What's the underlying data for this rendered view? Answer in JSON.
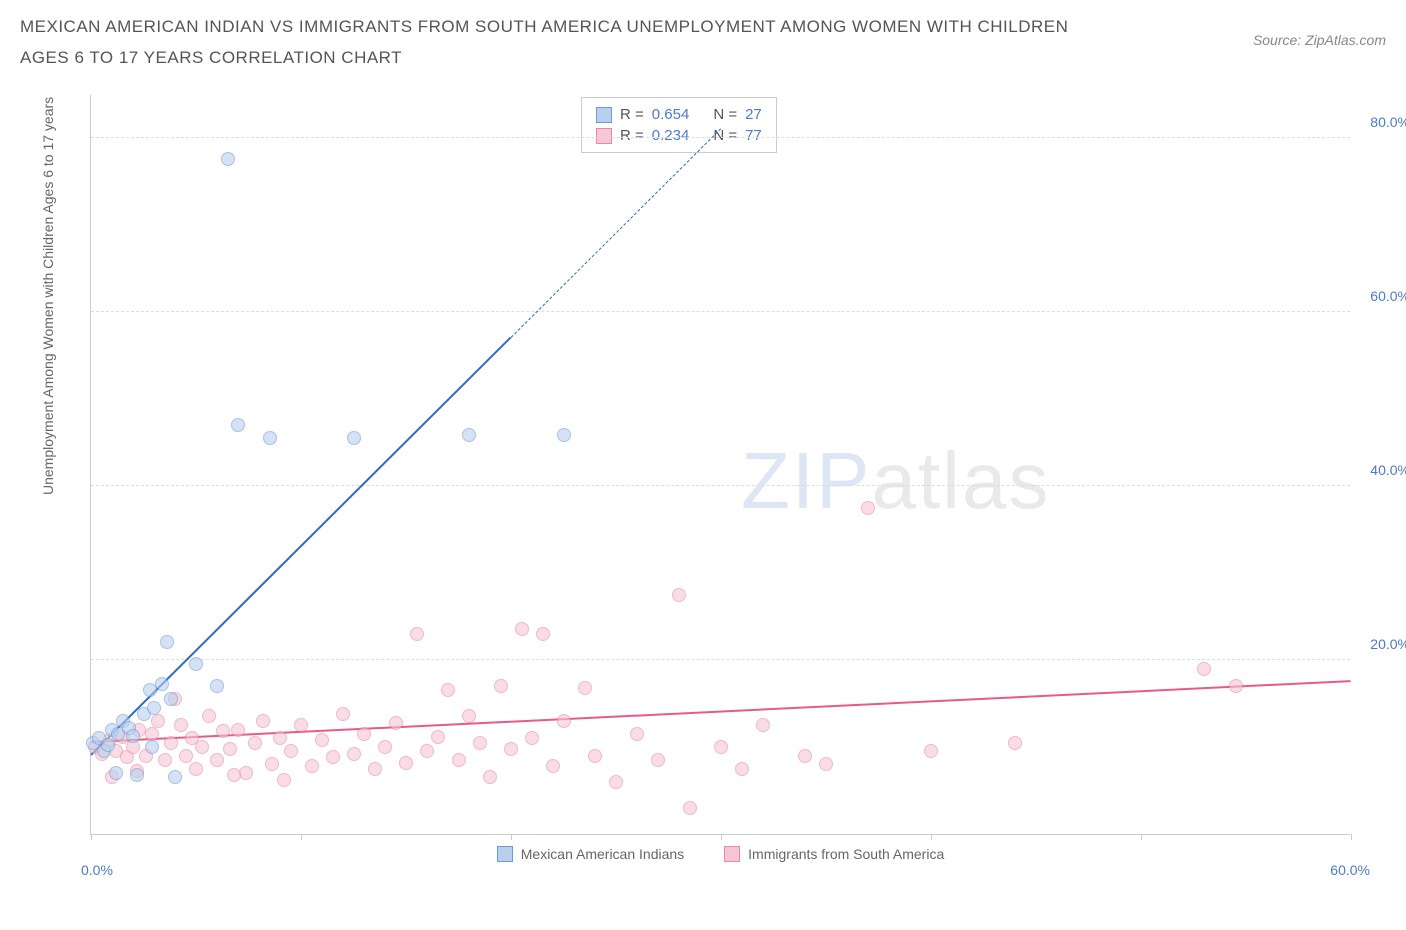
{
  "title": "MEXICAN AMERICAN INDIAN VS IMMIGRANTS FROM SOUTH AMERICA UNEMPLOYMENT AMONG WOMEN WITH CHILDREN AGES 6 TO 17 YEARS CORRELATION CHART",
  "source": "Source: ZipAtlas.com",
  "y_axis_label": "Unemployment Among Women with Children Ages 6 to 17 years",
  "watermark": {
    "bold": "ZIP",
    "light": "atlas"
  },
  "chart": {
    "type": "scatter",
    "xlim": [
      0,
      60
    ],
    "ylim": [
      0,
      85
    ],
    "x_tick_positions": [
      0,
      10,
      20,
      30,
      40,
      50,
      60
    ],
    "x_tick_labels_shown": {
      "left": "0.0%",
      "right": "60.0%"
    },
    "y_ticks": [
      {
        "value": 20,
        "label": "20.0%"
      },
      {
        "value": 40,
        "label": "40.0%"
      },
      {
        "value": 60,
        "label": "60.0%"
      },
      {
        "value": 80,
        "label": "80.0%"
      }
    ],
    "grid_color": "#dddddd",
    "background_color": "#ffffff",
    "series": [
      {
        "name": "Mexican American Indians",
        "color_fill": "#b8d0ee",
        "color_stroke": "#6a9bd8",
        "marker_size": 14,
        "fill_opacity": 0.6,
        "trend": {
          "color": "#2e6bc7",
          "x1": 0,
          "y1": 9,
          "x2_solid": 20,
          "y2_solid": 57,
          "x2_dash": 30,
          "y2_dash": 81
        },
        "R": "0.654",
        "N": "27",
        "points": [
          [
            0.1,
            10.5
          ],
          [
            0.4,
            11
          ],
          [
            0.6,
            9.5
          ],
          [
            0.8,
            10.2
          ],
          [
            1.0,
            12
          ],
          [
            1.3,
            11.5
          ],
          [
            1.5,
            13
          ],
          [
            1.8,
            12.2
          ],
          [
            2.0,
            11.3
          ],
          [
            2.2,
            6.8
          ],
          [
            2.5,
            13.8
          ],
          [
            2.8,
            16.5
          ],
          [
            3.0,
            14.5
          ],
          [
            3.4,
            17.2
          ],
          [
            3.8,
            15.5
          ],
          [
            3.6,
            22.0
          ],
          [
            5.0,
            19.5
          ],
          [
            6.0,
            17.0
          ],
          [
            6.5,
            77.5
          ],
          [
            7.0,
            47.0
          ],
          [
            8.5,
            45.5
          ],
          [
            12.5,
            45.5
          ],
          [
            18.0,
            45.8
          ],
          [
            22.5,
            45.8
          ],
          [
            1.2,
            7.0
          ],
          [
            4.0,
            6.5
          ],
          [
            2.9,
            10.0
          ]
        ]
      },
      {
        "name": "Immigrants from South America",
        "color_fill": "#f7c6d4",
        "color_stroke": "#e88aa6",
        "marker_size": 14,
        "fill_opacity": 0.6,
        "trend": {
          "color": "#e75a8a",
          "x1": 0,
          "y1": 10.5,
          "x2_solid": 60,
          "y2_solid": 17.5
        },
        "R": "0.234",
        "N": "77",
        "points": [
          [
            0.2,
            10
          ],
          [
            0.5,
            9.2
          ],
          [
            0.9,
            10.8
          ],
          [
            1.2,
            9.5
          ],
          [
            1.5,
            11.2
          ],
          [
            1.7,
            8.8
          ],
          [
            2.0,
            10.0
          ],
          [
            2.3,
            12.0
          ],
          [
            2.6,
            9.0
          ],
          [
            2.9,
            11.5
          ],
          [
            3.2,
            13.0
          ],
          [
            3.5,
            8.5
          ],
          [
            3.8,
            10.5
          ],
          [
            4.0,
            15.5
          ],
          [
            4.3,
            12.5
          ],
          [
            4.5,
            9.0
          ],
          [
            4.8,
            11.0
          ],
          [
            5.0,
            7.5
          ],
          [
            5.3,
            10.0
          ],
          [
            5.6,
            13.5
          ],
          [
            6.0,
            8.5
          ],
          [
            6.3,
            11.8
          ],
          [
            6.6,
            9.8
          ],
          [
            7.0,
            12.0
          ],
          [
            7.4,
            7.0
          ],
          [
            7.8,
            10.5
          ],
          [
            8.2,
            13.0
          ],
          [
            8.6,
            8.0
          ],
          [
            9.0,
            11.0
          ],
          [
            9.5,
            9.5
          ],
          [
            10.0,
            12.5
          ],
          [
            10.5,
            7.8
          ],
          [
            11.0,
            10.8
          ],
          [
            11.5,
            8.8
          ],
          [
            12.0,
            13.8
          ],
          [
            12.5,
            9.2
          ],
          [
            13.0,
            11.5
          ],
          [
            13.5,
            7.5
          ],
          [
            14.0,
            10.0
          ],
          [
            14.5,
            12.8
          ],
          [
            15.0,
            8.2
          ],
          [
            15.5,
            23.0
          ],
          [
            16.0,
            9.5
          ],
          [
            16.5,
            11.2
          ],
          [
            17.0,
            16.5
          ],
          [
            17.5,
            8.5
          ],
          [
            18.0,
            13.5
          ],
          [
            18.5,
            10.5
          ],
          [
            19.0,
            6.5
          ],
          [
            19.5,
            17.0
          ],
          [
            20.0,
            9.8
          ],
          [
            20.5,
            23.5
          ],
          [
            21.0,
            11.0
          ],
          [
            21.5,
            23.0
          ],
          [
            22.0,
            7.8
          ],
          [
            22.5,
            13.0
          ],
          [
            23.5,
            16.8
          ],
          [
            24.0,
            9.0
          ],
          [
            25.0,
            6.0
          ],
          [
            26.0,
            11.5
          ],
          [
            27.0,
            8.5
          ],
          [
            28.0,
            27.5
          ],
          [
            28.5,
            3.0
          ],
          [
            30.0,
            10.0
          ],
          [
            31.0,
            7.5
          ],
          [
            32.0,
            12.5
          ],
          [
            34.0,
            9.0
          ],
          [
            35.0,
            8.0
          ],
          [
            37.0,
            37.5
          ],
          [
            40.0,
            9.5
          ],
          [
            44.0,
            10.5
          ],
          [
            53.0,
            19.0
          ],
          [
            54.5,
            17.0
          ],
          [
            1.0,
            6.5
          ],
          [
            2.2,
            7.2
          ],
          [
            6.8,
            6.8
          ],
          [
            9.2,
            6.2
          ]
        ]
      }
    ],
    "stats_legend": {
      "rows": [
        {
          "swatch_fill": "#b8d0ee",
          "swatch_stroke": "#6a9bd8",
          "r_label": "R =",
          "r_val": "0.654",
          "n_label": "N =",
          "n_val": "27"
        },
        {
          "swatch_fill": "#f7c6d4",
          "swatch_stroke": "#e88aa6",
          "r_label": "R =",
          "r_val": "0.234",
          "n_label": "N =",
          "n_val": "77"
        }
      ]
    },
    "bottom_legend": [
      {
        "swatch_fill": "#b8d0ee",
        "swatch_stroke": "#6a9bd8",
        "label": "Mexican American Indians"
      },
      {
        "swatch_fill": "#f7c6d4",
        "swatch_stroke": "#e88aa6",
        "label": "Immigrants from South America"
      }
    ]
  }
}
